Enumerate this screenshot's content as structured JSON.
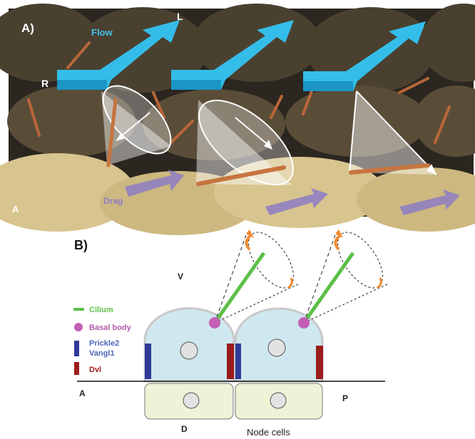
{
  "panel_a": {
    "label": "A)",
    "flow": "Flow",
    "left": "L",
    "right": "R",
    "drag": "Drag",
    "anterior": "A"
  },
  "panel_b": {
    "label": "B)",
    "ventral": "V",
    "dorsal": "D",
    "anterior": "A",
    "posterior": "P",
    "caption": "Node cells",
    "legend": {
      "cilium": "Cilium",
      "basal_body": "Basal body",
      "prickle2": "Prickle2",
      "vangl1": "Vangl1",
      "dvl": "Dvl"
    }
  }
}
